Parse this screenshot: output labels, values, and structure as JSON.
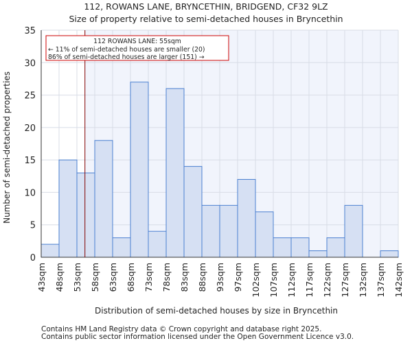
{
  "chart_data": {
    "type": "bar",
    "title": "112, ROWANS LANE, BRYNCETHIN, BRIDGEND, CF32 9LZ",
    "subtitle": "Size of property relative to semi-detached houses in Bryncethin",
    "xlabel": "Distribution of semi-detached houses by size in Bryncethin",
    "ylabel": "Number of semi-detached properties",
    "bin_edges_labels": [
      "43sqm",
      "48sqm",
      "53sqm",
      "58sqm",
      "63sqm",
      "68sqm",
      "73sqm",
      "78sqm",
      "83sqm",
      "88sqm",
      "93sqm",
      "97sqm",
      "102sqm",
      "107sqm",
      "112sqm",
      "117sqm",
      "122sqm",
      "127sqm",
      "132sqm",
      "137sqm",
      "142sqm"
    ],
    "values": [
      2,
      15,
      13,
      18,
      3,
      27,
      4,
      26,
      14,
      8,
      8,
      12,
      7,
      3,
      3,
      1,
      3,
      8,
      0,
      1
    ],
    "ylim": [
      0,
      35
    ],
    "yticks": [
      0,
      5,
      10,
      15,
      20,
      25,
      30,
      35
    ],
    "grid": true,
    "property_marker_bin_position": 2.45,
    "annotation": {
      "line1": "112 ROWANS LANE: 55sqm",
      "line2": "← 11% of semi-detached houses are smaller (20)",
      "line3": "86% of semi-detached houses are larger (151) →"
    },
    "colors": {
      "bar_fill": "#d6e0f3",
      "bar_stroke": "#4a7fd0",
      "marker": "#cc0000",
      "bg_right": "#f1f4fc",
      "grid": "#d8dce6"
    }
  },
  "footer": {
    "line1": "Contains HM Land Registry data © Crown copyright and database right 2025.",
    "line2": "Contains public sector information licensed under the Open Government Licence v3.0."
  }
}
